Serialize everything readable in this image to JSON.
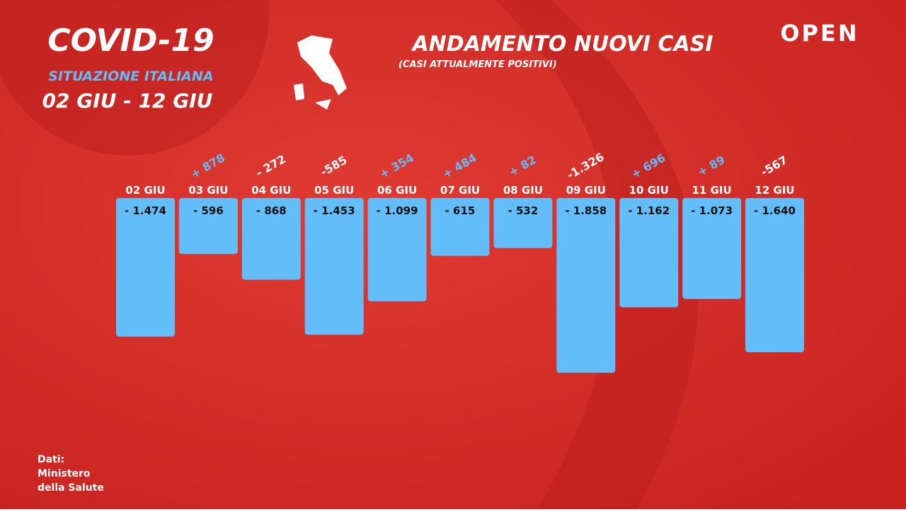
{
  "chart_data": {
    "type": "bar",
    "title": "COVID-19",
    "subtitle": "SITUAZIONE ITALIANA",
    "period": "02 GIU - 12 GIU",
    "chart_title": "ANDAMENTO NUOVI CASI",
    "chart_subtitle": "(CASI ATTUALMENTE POSITIVI)",
    "brand": "OPEN",
    "source": [
      "Dati:",
      "Ministero",
      "della Salute"
    ],
    "categories": [
      "02 GIU",
      "03 GIU",
      "04 GIU",
      "05 GIU",
      "06 GIU",
      "07 GIU",
      "08 GIU",
      "09 GIU",
      "10 GIU",
      "11 GIU",
      "12 GIU"
    ],
    "values": [
      -1474,
      -596,
      -868,
      -1453,
      -1099,
      -615,
      -532,
      -1858,
      -1162,
      -1073,
      -1640
    ],
    "value_labels": [
      "- 1.474",
      "- 596",
      "- 868",
      "- 1.453",
      "- 1.099",
      "- 615",
      "- 532",
      "- 1.858",
      "- 1.162",
      "- 1.073",
      "- 1.640"
    ],
    "color": "#62bdf9",
    "changes": [
      null,
      878,
      -272,
      -585,
      354,
      484,
      82,
      -1326,
      696,
      89,
      -567
    ],
    "change_labels": [
      null,
      "+ 878",
      "- 272",
      "-585",
      "+ 354",
      "+ 484",
      "+ 82",
      "-1.326",
      "+ 696",
      "+ 89",
      "-567"
    ],
    "change_colors": {
      "up": "#62bdf9",
      "down": "#ffffff"
    }
  }
}
